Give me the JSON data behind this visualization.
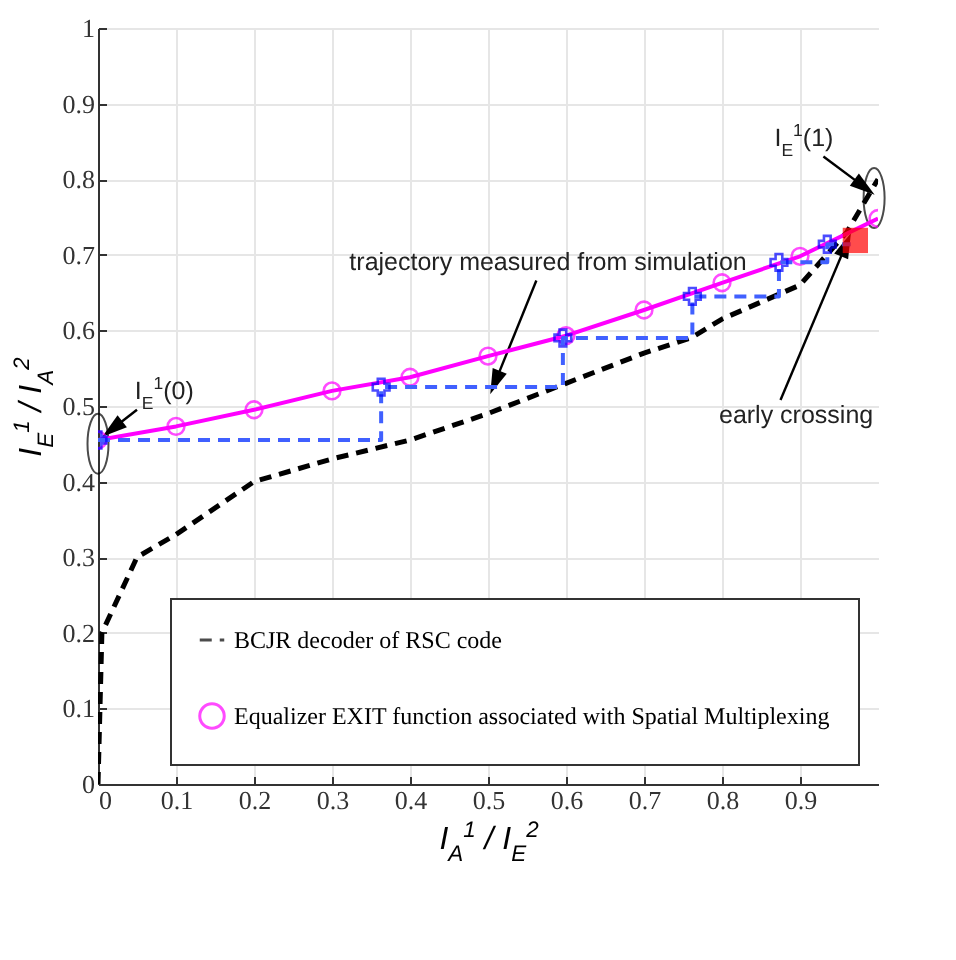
{
  "chart_data": {
    "type": "line",
    "xlabel": "I$_{A}$$^{1}$ / I$_{E}$$^{2}$",
    "ylabel": "I$_{E}$$^{1}$ / I$_{A}$$^{2}$",
    "xlim": [
      0,
      1
    ],
    "xticks": [
      0,
      0.1,
      0.2,
      0.3,
      0.4,
      0.5,
      0.6,
      0.7,
      0.8,
      0.9
    ],
    "ylim": [
      0,
      1
    ],
    "yticks": [
      0,
      0.1,
      0.2,
      0.3,
      0.4,
      0.5,
      0.6,
      0.7,
      0.8,
      0.9,
      1
    ],
    "grid": true,
    "legend": "bottom right",
    "series": [
      {
        "name": "BCJR decoder of RSC code",
        "type": "line",
        "color": "#000000",
        "line_style": "dashed",
        "marker": "none",
        "x": [
          0,
          0.005,
          0.05,
          0.1,
          0.2,
          0.3,
          0.4,
          0.5,
          0.6,
          0.7,
          0.76,
          0.8,
          0.9,
          0.96,
          1
        ],
        "values": [
          0,
          0.2,
          0.3,
          0.33,
          0.4,
          0.43,
          0.455,
          0.49,
          0.53,
          0.57,
          0.59,
          0.615,
          0.66,
          0.73,
          0.8
        ]
      },
      {
        "name": "Equalizer EXIT function associated with Spatial Multiplexing",
        "type": "line",
        "color": "#ff00ff",
        "line_style": "solid",
        "marker": "circle",
        "x": [
          0,
          0.1,
          0.2,
          0.3,
          0.4,
          0.5,
          0.6,
          0.7,
          0.8,
          0.9,
          1
        ],
        "values": [
          0.455,
          0.473,
          0.495,
          0.52,
          0.538,
          0.566,
          0.593,
          0.627,
          0.663,
          0.698,
          0.748
        ]
      },
      {
        "type": "line",
        "color": "#4060ff",
        "line_style": "dashed",
        "marker": "none",
        "x": [
          0,
          0.363,
          0.363,
          0.596,
          0.596,
          0.762,
          0.762,
          0.873,
          0.873,
          0.935,
          0.935,
          0.965
        ],
        "values": [
          0.455,
          0.455,
          0.525,
          0.525,
          0.59,
          0.59,
          0.645,
          0.645,
          0.69,
          0.69,
          0.714,
          0.714
        ]
      },
      {
        "type": "scatter",
        "color": "#0000ff",
        "marker": "cross",
        "x": [
          0,
          0.363,
          0.596,
          0.762,
          0.873,
          0.935
        ],
        "values": [
          0.455,
          0.525,
          0.59,
          0.645,
          0.69,
          0.714
        ]
      },
      {
        "type": "scatter",
        "color": "#ff0000",
        "marker": "square",
        "x": [
          0.971
        ],
        "values": [
          0.719
        ]
      }
    ],
    "annotations": [
      {
        "text": "I$_{E}$$^{1}$(0)",
        "x": 0,
        "y": 0.455
      },
      {
        "text": "trajectory measured from simulation",
        "x": 0.507,
        "y": 0.526
      },
      {
        "text": "early crossing",
        "x": 0.965,
        "y": 0.728
      },
      {
        "text": "I$_{E}$$^{1}$(1)",
        "x": 0.995,
        "y": 0.78
      }
    ]
  }
}
